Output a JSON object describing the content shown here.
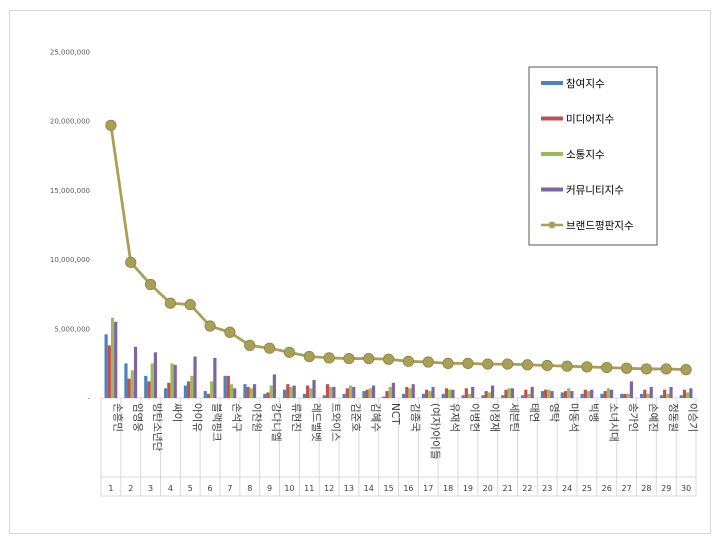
{
  "chart_data": {
    "type": "bar",
    "ylim": [
      0,
      25000000
    ],
    "y_ticks": [
      "-",
      "5,000,000",
      "10,000,000",
      "15,000,000",
      "20,000,000",
      "25,000,000"
    ],
    "ranks": [
      "1",
      "2",
      "3",
      "4",
      "5",
      "6",
      "7",
      "8",
      "9",
      "10",
      "11",
      "12",
      "13",
      "14",
      "15",
      "16",
      "17",
      "18",
      "19",
      "20",
      "21",
      "22",
      "23",
      "24",
      "25",
      "26",
      "27",
      "28",
      "29",
      "30"
    ],
    "categories": [
      "손흥민",
      "임영웅",
      "방탄소년단",
      "싸이",
      "아이유",
      "블랙핑크",
      "손석구",
      "이찬원",
      "강다니엘",
      "류현진",
      "레드벨벳",
      "트와이스",
      "김준호",
      "김혜수",
      "NCT",
      "김종국",
      "(여자)아이들",
      "유재석",
      "이병헌",
      "이정재",
      "세븐틴",
      "태연",
      "영탁",
      "마동석",
      "빅뱅",
      "소녀시대",
      "송가인",
      "손예진",
      "정동원",
      "이승기"
    ],
    "legend_position": "top-right",
    "gridlines": false,
    "series": [
      {
        "name": "참여지수",
        "kind": "bar",
        "color": "#4F81BD",
        "values": [
          4600000,
          2500000,
          1600000,
          700000,
          900000,
          500000,
          1600000,
          1000000,
          300000,
          600000,
          300000,
          200000,
          300000,
          500000,
          100000,
          300000,
          300000,
          300000,
          200000,
          200000,
          200000,
          200000,
          500000,
          400000,
          300000,
          300000,
          300000,
          300000,
          200000,
          200000
        ]
      },
      {
        "name": "미디어지수",
        "kind": "bar",
        "color": "#C0504D",
        "values": [
          3800000,
          1400000,
          1200000,
          1100000,
          1200000,
          300000,
          1600000,
          800000,
          400000,
          1000000,
          900000,
          1000000,
          700000,
          600000,
          500000,
          800000,
          600000,
          700000,
          700000,
          500000,
          600000,
          600000,
          600000,
          500000,
          600000,
          500000,
          300000,
          600000,
          600000,
          600000
        ]
      },
      {
        "name": "소통지수",
        "kind": "bar",
        "color": "#9BBB59",
        "values": [
          5800000,
          2000000,
          2500000,
          2500000,
          1600000,
          1200000,
          1000000,
          700000,
          900000,
          800000,
          700000,
          800000,
          900000,
          700000,
          800000,
          700000,
          500000,
          600000,
          300000,
          400000,
          700000,
          300000,
          600000,
          700000,
          500000,
          700000,
          300000,
          300000,
          300000,
          400000
        ]
      },
      {
        "name": "커뮤니티지수",
        "kind": "bar",
        "color": "#8064A2",
        "values": [
          5500000,
          3700000,
          3300000,
          2400000,
          3000000,
          2900000,
          700000,
          1000000,
          1700000,
          900000,
          1300000,
          800000,
          800000,
          900000,
          1100000,
          1000000,
          800000,
          600000,
          800000,
          900000,
          700000,
          800000,
          500000,
          500000,
          600000,
          600000,
          1200000,
          800000,
          800000,
          700000
        ]
      },
      {
        "name": "브랜드평판지수",
        "kind": "line",
        "color": "#A9A057",
        "values": [
          19700000,
          9800000,
          8200000,
          6850000,
          6750000,
          5200000,
          4750000,
          3800000,
          3600000,
          3300000,
          3000000,
          2900000,
          2850000,
          2850000,
          2800000,
          2650000,
          2600000,
          2500000,
          2500000,
          2450000,
          2450000,
          2400000,
          2350000,
          2300000,
          2250000,
          2200000,
          2150000,
          2100000,
          2100000,
          2050000
        ]
      }
    ]
  }
}
